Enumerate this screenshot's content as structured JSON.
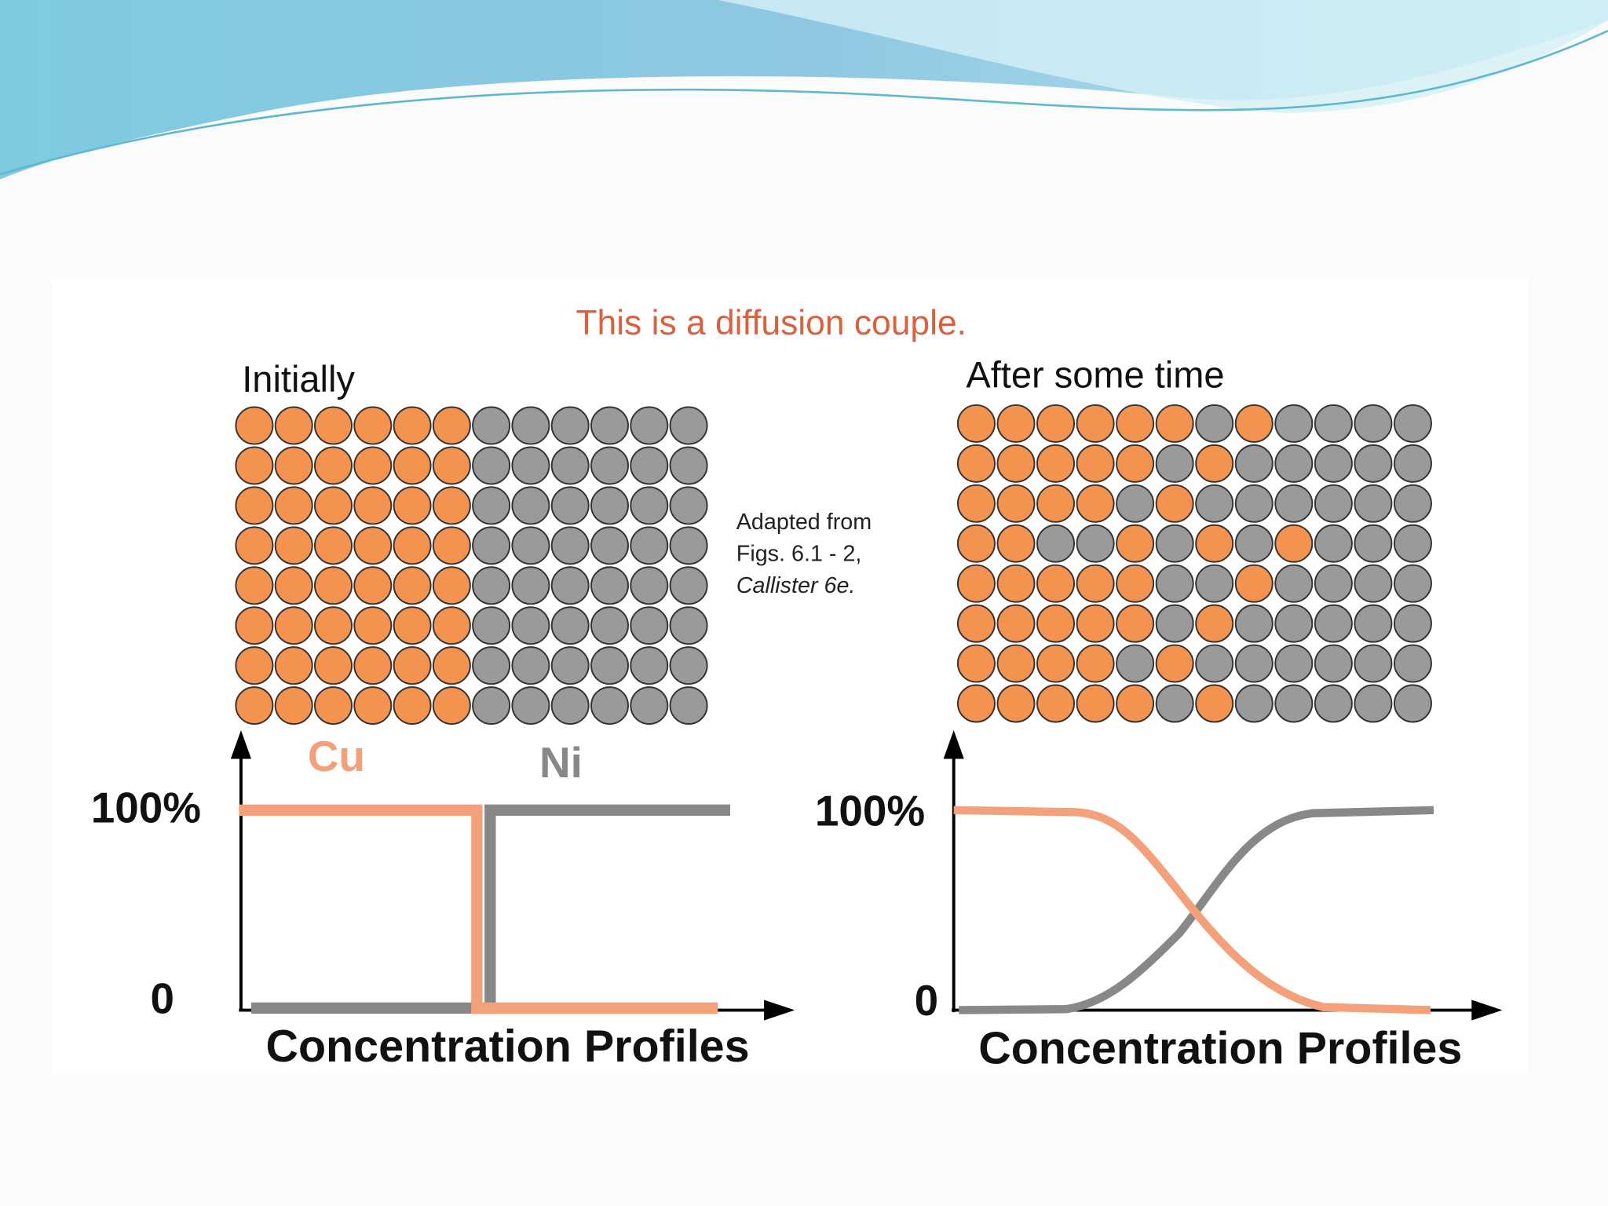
{
  "title": "This is a diffusion couple.",
  "initial": {
    "label": "Initially",
    "cu_label": "Cu",
    "ni_label": "Ni",
    "y_top": "100%",
    "y_bottom": "0",
    "x_label": "Concentration Profiles"
  },
  "after": {
    "label": "After some time",
    "y_top": "100%",
    "y_bottom": "0",
    "x_label": "Concentration Profiles"
  },
  "credit": {
    "line1": "Adapted from",
    "line2": "Figs. 6.1 - 2,",
    "line3": "Callister 6e."
  }
}
